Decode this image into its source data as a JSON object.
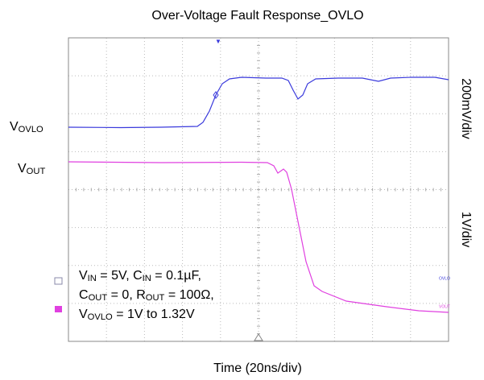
{
  "chart_data": {
    "type": "oscilloscope",
    "title": "Over-Voltage Fault Response_OVLO",
    "x_label": "Time (20ns/div)",
    "right_labels": [
      "200mV/div",
      "1V/div"
    ],
    "trace_labels": [
      [
        {
          "t": "V"
        },
        {
          "s": "OVLO"
        }
      ],
      [
        {
          "t": "V"
        },
        {
          "s": "OUT"
        }
      ]
    ],
    "annotation": [
      [
        {
          "t": "V"
        },
        {
          "s": "IN"
        },
        {
          "t": " = 5V, C"
        },
        {
          "s": "IN"
        },
        {
          "t": " = 0.1µF,"
        }
      ],
      [
        {
          "t": "C"
        },
        {
          "s": "OUT"
        },
        {
          "t": " = 0, R"
        },
        {
          "s": "OUT"
        },
        {
          "t": " = 100Ω,"
        }
      ],
      [
        {
          "t": "V"
        },
        {
          "s": "OVLO"
        },
        {
          "t": " = 1V to 1.32V"
        }
      ]
    ],
    "channel_tags": [
      "OVLO",
      "VOUT"
    ]
  }
}
